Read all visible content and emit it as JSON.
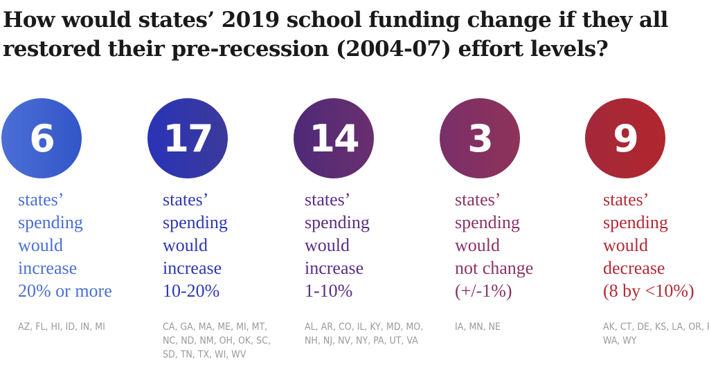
{
  "title": "How would states’ 2019 school funding change if they all restored their pre-recession (2004-07) effort levels?",
  "groups": [
    {
      "count": "6",
      "lines": [
        "states’",
        "spending",
        "would",
        "increase",
        "20% or more"
      ],
      "states": "AZ, FL, HI, ID, IN, MI",
      "circle_gradient": [
        "#4b6fd6",
        "#3356c8"
      ],
      "text_color": "#4a6fd4"
    },
    {
      "count": "17",
      "lines": [
        "states’",
        "spending",
        "would",
        "increase",
        "10-20%"
      ],
      "states": "CA, GA, MA, ME, MI, MT, NC, ND, NM, OH, OK, SC, SD, TN, TX, WI, WV",
      "circle_gradient": [
        "#2a33b8",
        "#3b3a9a"
      ],
      "text_color": "#2f38b0"
    },
    {
      "count": "14",
      "lines": [
        "states’",
        "spending",
        "would",
        "increase",
        "1-10%"
      ],
      "states": "AL, AR, CO, IL, KY, MD, MO, NH, NJ, NV, NY, PA, UT, VA",
      "circle_gradient": [
        "#4e2a78",
        "#6a2f6e"
      ],
      "text_color": "#5a2d86"
    },
    {
      "count": "3",
      "lines": [
        "states’",
        "spending",
        "would",
        "not change",
        "(+/-1%)"
      ],
      "states": "IA, MN, NE",
      "circle_gradient": [
        "#7a2f6a",
        "#8e3358"
      ],
      "text_color": "#8a3366"
    },
    {
      "count": "9",
      "lines": [
        "states’",
        "spending",
        "would",
        "decrease",
        "(8 by <10%)"
      ],
      "states": "AK, CT, DE, KS, LA, OR, RI, WA, WY",
      "circle_gradient": [
        "#a3283b",
        "#b0272e"
      ],
      "text_color": "#b32a35"
    }
  ]
}
